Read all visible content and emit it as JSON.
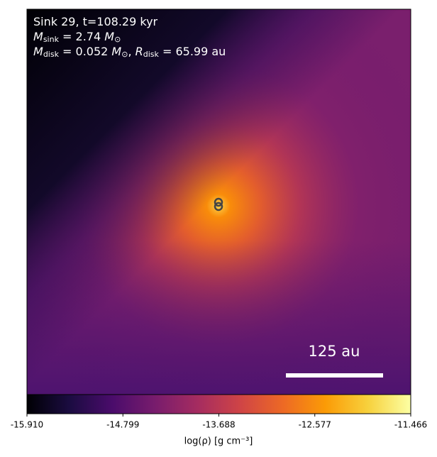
{
  "chart_data": {
    "type": "image",
    "annotations": [
      [
        {
          "text": "Sink 29, t=108.29 kyr"
        }
      ],
      [
        {
          "text": "M",
          "italic": true
        },
        {
          "text": "sink",
          "sub": true
        },
        {
          "text": " = 2.74 "
        },
        {
          "text": "M",
          "italic": true
        },
        {
          "text": "⊙",
          "sub": true
        }
      ],
      [
        {
          "text": "M",
          "italic": true
        },
        {
          "text": "disk",
          "sub": true
        },
        {
          "text": " = 0.052 "
        },
        {
          "text": "M",
          "italic": true
        },
        {
          "text": "⊙",
          "sub": true
        },
        {
          "text": ", "
        },
        {
          "text": "R",
          "italic": true
        },
        {
          "text": "disk",
          "sub": true
        },
        {
          "text": " = 65.99 au"
        }
      ]
    ],
    "scale_bar_label": "125 au",
    "colormap": "inferno",
    "colorbar_label": "log(ρ) [g cm⁻³]",
    "clim": [
      -15.91,
      -11.466
    ],
    "cticks": [
      {
        "value": -15.91,
        "label": "-15.910"
      },
      {
        "value": -14.799,
        "label": "-14.799"
      },
      {
        "value": -13.688,
        "label": "-13.688"
      },
      {
        "value": -12.577,
        "label": "-12.577"
      },
      {
        "value": -11.466,
        "label": "-11.466"
      }
    ]
  }
}
